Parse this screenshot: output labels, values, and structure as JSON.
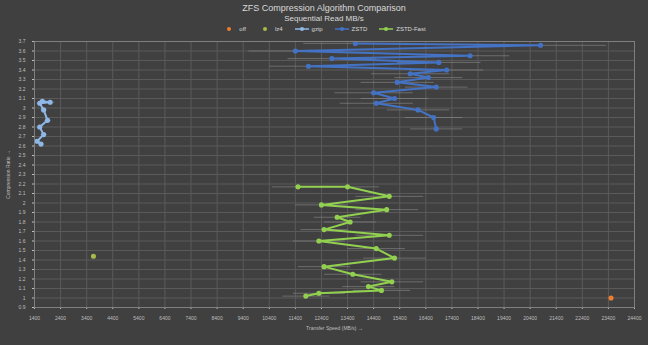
{
  "chart_data": {
    "type": "line",
    "title": "ZFS Compression Algorithm Comparison",
    "subtitle": "Sequential Read MB/s",
    "x_label": "Transfer Speed (MB/s)",
    "y_label": "Compression Ratio",
    "xlim": [
      1400,
      24400
    ],
    "xticks": [
      1400,
      2400,
      3400,
      4400,
      5400,
      6400,
      7400,
      8400,
      9400,
      10400,
      11400,
      12400,
      13400,
      14400,
      15400,
      16400,
      17400,
      18400,
      19400,
      20400,
      21400,
      22400,
      23400,
      24400
    ],
    "ylim": [
      0.9,
      3.7
    ],
    "yticks": [
      0.9,
      1,
      1.1,
      1.2,
      1.3,
      1.4,
      1.5,
      1.6,
      1.7,
      1.8,
      1.9,
      2,
      2.1,
      2.2,
      2.3,
      2.4,
      2.5,
      2.6,
      2.7,
      2.8,
      2.9,
      3,
      3.1,
      3.2,
      3.3,
      3.4,
      3.5,
      3.6,
      3.7
    ],
    "grid": true,
    "legend": "top",
    "series": [
      {
        "name": "off",
        "color": "#ed7d31",
        "marker": "circle",
        "x": [
          23500
        ],
        "values": [
          1.0
        ]
      },
      {
        "name": "lz4",
        "color": "#a9b84a",
        "marker": "circle",
        "x": [
          3660
        ],
        "values": [
          1.44
        ]
      },
      {
        "name": "gzip",
        "color": "#8fb8e8",
        "marker": "circle",
        "line_style": "solid",
        "x": [
          1700,
          2000,
          1600,
          1750,
          1900,
          1600,
          1750,
          1500,
          1650
        ],
        "values": [
          3.07,
          3.06,
          3.05,
          2.98,
          2.87,
          2.8,
          2.72,
          2.65,
          2.62
        ],
        "x_error": [
          150,
          150,
          120,
          120,
          130,
          110,
          120,
          100,
          110
        ]
      },
      {
        "name": "ZSTD",
        "color": "#4472c4",
        "marker": "circle",
        "line_style": "solid",
        "x": [
          13700,
          20800,
          11400,
          18100,
          12800,
          16900,
          11900,
          17200,
          15800,
          16500,
          15300,
          16800,
          14400,
          15200,
          14500,
          16100,
          16700,
          16800
        ],
        "values": [
          3.68,
          3.66,
          3.6,
          3.55,
          3.52,
          3.48,
          3.44,
          3.4,
          3.36,
          3.32,
          3.27,
          3.22,
          3.16,
          3.1,
          3.05,
          2.98,
          2.9,
          2.78
        ],
        "x_error": [
          2000,
          2500,
          1800,
          1500,
          1700,
          1600,
          1500,
          1400,
          1500,
          1300,
          1400,
          1200,
          1500,
          1300,
          1400,
          1200,
          1100,
          1000
        ]
      },
      {
        "name": "ZSTD-Fast",
        "color": "#92d050",
        "marker": "circle",
        "line_style": "solid",
        "x": [
          11500,
          13400,
          15000,
          12400,
          14900,
          13000,
          13500,
          12500,
          15000,
          12300,
          14500,
          15200,
          12500,
          13600,
          15100,
          14200,
          14700,
          12300,
          11800
        ],
        "values": [
          2.17,
          2.17,
          2.07,
          1.98,
          1.93,
          1.85,
          1.8,
          1.72,
          1.66,
          1.6,
          1.52,
          1.42,
          1.33,
          1.25,
          1.17,
          1.12,
          1.08,
          1.05,
          1.02
        ],
        "x_error": [
          1000,
          1200,
          1300,
          1000,
          1200,
          900,
          1000,
          900,
          1300,
          1000,
          1100,
          1200,
          1000,
          1100,
          1200,
          1000,
          1100,
          1000,
          900
        ]
      }
    ]
  }
}
